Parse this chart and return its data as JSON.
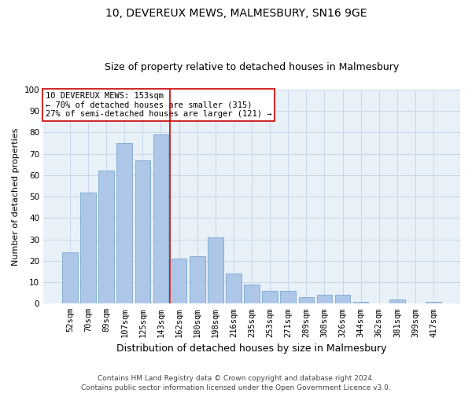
{
  "title": "10, DEVEREUX MEWS, MALMESBURY, SN16 9GE",
  "subtitle": "Size of property relative to detached houses in Malmesbury",
  "xlabel": "Distribution of detached houses by size in Malmesbury",
  "ylabel": "Number of detached properties",
  "categories": [
    "52sqm",
    "70sqm",
    "89sqm",
    "107sqm",
    "125sqm",
    "143sqm",
    "162sqm",
    "180sqm",
    "198sqm",
    "216sqm",
    "235sqm",
    "253sqm",
    "271sqm",
    "289sqm",
    "308sqm",
    "326sqm",
    "344sqm",
    "362sqm",
    "381sqm",
    "399sqm",
    "417sqm"
  ],
  "values": [
    24,
    52,
    62,
    75,
    67,
    79,
    21,
    22,
    31,
    14,
    9,
    6,
    6,
    3,
    4,
    4,
    1,
    0,
    2,
    0,
    1
  ],
  "bar_color": "#aec6e8",
  "bar_edge_color": "#6a9fc8",
  "grid_color": "#c8d8e8",
  "background_color": "#e8f0f8",
  "vline_color": "#cc0000",
  "annotation_text": "10 DEVEREUX MEWS: 153sqm\n← 70% of detached houses are smaller (315)\n27% of semi-detached houses are larger (121) →",
  "annotation_box_color": "#ffffff",
  "annotation_box_edge": "#cc0000",
  "ylim": [
    0,
    100
  ],
  "yticks": [
    0,
    10,
    20,
    30,
    40,
    50,
    60,
    70,
    80,
    90,
    100
  ],
  "footer": "Contains HM Land Registry data © Crown copyright and database right 2024.\nContains public sector information licensed under the Open Government Licence v3.0.",
  "title_fontsize": 10,
  "subtitle_fontsize": 9,
  "xlabel_fontsize": 9,
  "ylabel_fontsize": 8,
  "tick_fontsize": 7.5,
  "footer_fontsize": 6.5,
  "annot_fontsize": 7.5
}
